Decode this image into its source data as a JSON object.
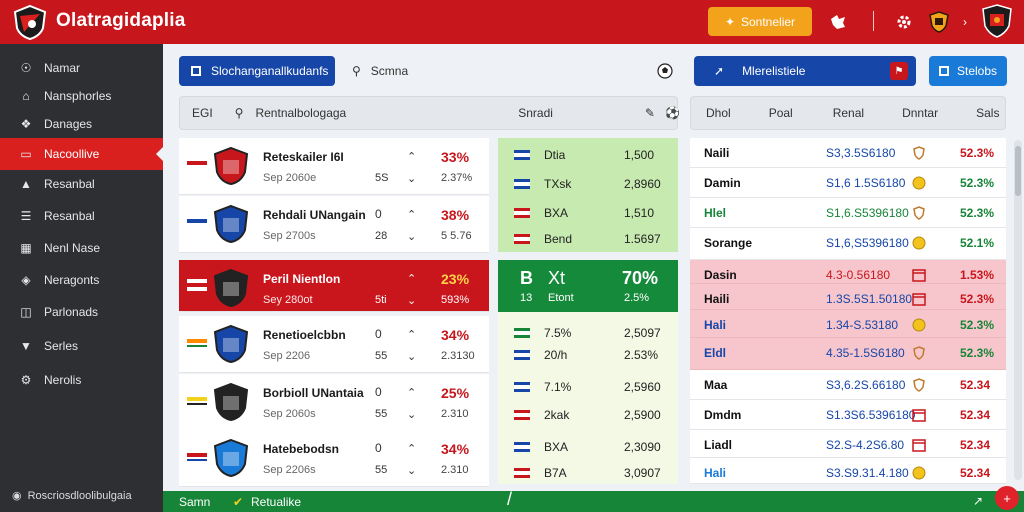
{
  "app": {
    "title": "Olatragidaplia",
    "top_button": "Sontnelier"
  },
  "sidebar": {
    "items": [
      {
        "label": "Namar",
        "icon": "globe-icon"
      },
      {
        "label": "Nansphorles",
        "icon": "home-icon"
      },
      {
        "label": "Danages",
        "icon": "network-icon"
      },
      {
        "label": "Nacoollive",
        "icon": "ticket-icon",
        "active": true
      },
      {
        "label": "Resanbal",
        "icon": "bank-icon"
      },
      {
        "label": "Resanbal",
        "icon": "list-icon"
      },
      {
        "label": "Nenl Nase",
        "icon": "grid-icon"
      },
      {
        "label": "Neragonts",
        "icon": "shield-icon"
      },
      {
        "label": "Parlonads",
        "icon": "monitor-icon"
      },
      {
        "label": "Serles",
        "icon": "badge-icon"
      },
      {
        "label": "Nerolis",
        "icon": "gear-icon"
      }
    ],
    "footer": "Roscriosdloolibulgaia"
  },
  "toolbar": {
    "primary_button": "Slochanganallkudanfs",
    "search_label": "Scmna",
    "right_button_label": "Mlerelistiele",
    "right_button2": "Stelobs"
  },
  "left_header": {
    "code": "EGI",
    "search": "Rentnalbologaga",
    "stats": "Snradi"
  },
  "right_header": {
    "columns": [
      "Dhol",
      "Poal",
      "Renal",
      "Dnntar",
      "Sals"
    ]
  },
  "matches": [
    {
      "team": "Reteskailer I6I",
      "sub": "Sep 2060e",
      "c1": "",
      "c1b": "5S",
      "c2": "",
      "c2b": "",
      "pct": "33%",
      "pct2": "2.37%"
    },
    {
      "team": "Rehdali UNangain",
      "sub": "Sep 2700s",
      "c1": "0",
      "c1b": "28",
      "c2": "",
      "c2b": "",
      "pct": "38%",
      "pct2": "5 5.76"
    },
    {
      "team": "Peril Nientlon",
      "sub": "Sey 280ot",
      "c1": "",
      "c1b": "5ti",
      "c2": "",
      "c2b": "",
      "pct": "23%",
      "pct2": "593%"
    },
    {
      "team": "Renetioelcbbn",
      "sub": "Sep 2206",
      "c1": "0",
      "c1b": "55",
      "c2": "",
      "c2b": "",
      "pct": "34%",
      "pct2": "2.3130"
    },
    {
      "team": "Borbioll UNantaia",
      "sub": "Sep 2060s",
      "c1": "0",
      "c1b": "55",
      "c2": "",
      "c2b": "",
      "pct": "25%",
      "pct2": "2.310"
    },
    {
      "team": "Hatebebodsn",
      "sub": "Sep 2206s",
      "c1": "0",
      "c1b": "55",
      "c2": "",
      "c2b": "",
      "pct": "34%",
      "pct2": "2.310"
    }
  ],
  "odds": [
    {
      "label": "Dtia",
      "value": "1,500"
    },
    {
      "label": "TXsk",
      "value": "2,8960"
    },
    {
      "label": "BXA",
      "value": "1,510"
    },
    {
      "label": "Bend",
      "value": "1.5697"
    },
    {
      "label": "7.5%",
      "value": "2,5097"
    },
    {
      "label": "20/h",
      "value": "2.53%"
    },
    {
      "label": "7.1%",
      "value": "2,5960"
    },
    {
      "label": "2kak",
      "value": "2,5900"
    },
    {
      "label": "BXA",
      "value": "2,3090"
    },
    {
      "label": "B7A",
      "value": "3,0907"
    }
  ],
  "odds_highlight": {
    "a": "B",
    "b": "Xt",
    "pct": "70%",
    "a2": "13",
    "b2": "Etont",
    "val2": "2.5%"
  },
  "right_rows": [
    {
      "name": "Naili",
      "value": "S3,3.5S6180",
      "pct": "52.3%"
    },
    {
      "name": "Damin",
      "value": "S1,6 1.5S6180",
      "pct": "52.3%"
    },
    {
      "name": "Hlel",
      "value": "S1,6.S5396180",
      "pct": "52.3%"
    },
    {
      "name": "Sorange",
      "value": "S1,6,S5396180",
      "pct": "52.1%"
    },
    {
      "name": "Dasin",
      "value": "4.3-0.56180",
      "pct": "1.53%"
    },
    {
      "name": "Haili",
      "value": "1.3S.5S1.50180",
      "pct": "52.3%"
    },
    {
      "name": "Hali",
      "value": "1.34-S.53180",
      "pct": "52.3%"
    },
    {
      "name": "Eldl",
      "value": "4.35-1.5S6180",
      "pct": "52.3%"
    },
    {
      "name": "Maa",
      "value": "S3,6.2S.66180",
      "pct": "52.34"
    },
    {
      "name": "Dmdm",
      "value": "S1.3S6.5396180",
      "pct": "52.34"
    },
    {
      "name": "Liadl",
      "value": "S2.S-4.2S6.80",
      "pct": "52.34"
    },
    {
      "name": "Hali",
      "value": "S3.S9.31.4.180",
      "pct": "52.34"
    }
  ],
  "bottom": {
    "left": "Samn",
    "right": "Retualike"
  },
  "colors": {
    "brand_red": "#c8161d",
    "green": "#178538",
    "accent_orange": "#f3a21b",
    "blue": "#1646a8"
  }
}
